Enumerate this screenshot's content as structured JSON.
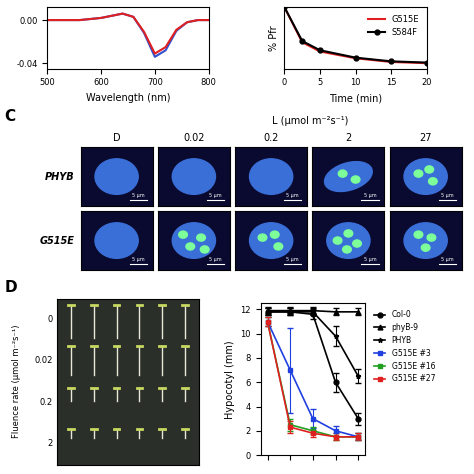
{
  "chart_data": [
    {
      "type": "line",
      "xlabel": "Wavelength (nm)",
      "x": [
        500,
        520,
        540,
        560,
        580,
        600,
        620,
        640,
        660,
        680,
        700,
        720,
        740,
        760,
        780,
        800
      ],
      "series": [
        {
          "color": "#3050d0",
          "marker": "none",
          "line_style": "solid",
          "values": [
            0,
            0,
            0,
            0,
            0.001,
            0.002,
            0.004,
            0.006,
            0.003,
            -0.012,
            -0.034,
            -0.028,
            -0.01,
            -0.002,
            0,
            0
          ]
        },
        {
          "color": "#e02020",
          "marker": "none",
          "line_style": "solid",
          "values": [
            0,
            0,
            0,
            0,
            0.001,
            0.002,
            0.004,
            0.006,
            0.003,
            -0.011,
            -0.031,
            -0.025,
            -0.009,
            -0.002,
            0,
            0
          ]
        }
      ],
      "xlim": [
        500,
        800
      ],
      "xticks": [
        500,
        600,
        700,
        800
      ],
      "ylim": [
        -0.045,
        0.012
      ],
      "yticks": [
        -0.04,
        {
          "value": 0,
          "label": "0.00"
        }
      ]
    },
    {
      "type": "line",
      "xlabel": "Time (min)",
      "ylabel": "% Pfr",
      "x": [
        0,
        2.5,
        5,
        10,
        15,
        20
      ],
      "series": [
        {
          "name": "G515E",
          "color": "#e02020",
          "marker": "none",
          "line_style": "solid",
          "values": [
            100,
            43,
            28,
            17,
            11,
            9
          ]
        },
        {
          "name": "S584F",
          "color": "#000000",
          "marker": "circle",
          "line_style": "solid",
          "values": [
            100,
            45,
            30,
            18,
            12,
            10
          ]
        }
      ],
      "xlim": [
        0,
        20
      ],
      "xticks": [
        0,
        5,
        10,
        15,
        20
      ],
      "ylim": [
        0,
        100
      ],
      "tick_labels": "x",
      "legend": "upper right"
    },
    {
      "type": "line",
      "ylabel": "Hypocotyl (mm)",
      "x": [
        0,
        1,
        2,
        3,
        4
      ],
      "series": [
        {
          "name": "Col-0",
          "color": "#000000",
          "marker": "circle",
          "line_style": "solid",
          "values": [
            11.8,
            11.8,
            11.6,
            6.0,
            3.0
          ],
          "errors": [
            0.3,
            0.3,
            0.4,
            0.8,
            0.5
          ]
        },
        {
          "name": "phyB-9",
          "color": "#000000",
          "marker": "triangle",
          "line_style": "solid",
          "values": [
            11.9,
            11.9,
            11.9,
            11.8,
            11.8
          ],
          "errors": [
            0.3,
            0.3,
            0.3,
            0.3,
            0.3
          ]
        },
        {
          "name": "PHYB",
          "color": "#000000",
          "marker": "star",
          "line_style": "solid",
          "values": [
            11.8,
            11.8,
            11.8,
            9.8,
            6.5
          ],
          "errors": [
            0.3,
            0.3,
            0.3,
            0.8,
            0.6
          ]
        },
        {
          "name": "G515E #3",
          "color": "#2040e0",
          "marker": "square",
          "line_style": "solid",
          "values": [
            11.0,
            7.0,
            3.0,
            2.0,
            1.5
          ],
          "errors": [
            0.4,
            3.5,
            0.8,
            0.4,
            0.3
          ]
        },
        {
          "name": "G515E #16",
          "color": "#20a020",
          "marker": "square",
          "line_style": "solid",
          "values": [
            11.0,
            2.5,
            2.0,
            1.5,
            1.5
          ],
          "errors": [
            0.4,
            0.5,
            0.3,
            0.3,
            0.3
          ]
        },
        {
          "name": "G515E #27",
          "color": "#e02020",
          "marker": "square",
          "line_style": "solid",
          "values": [
            11.0,
            2.3,
            1.8,
            1.5,
            1.5
          ],
          "errors": [
            0.4,
            0.5,
            0.3,
            0.3,
            0.3
          ]
        }
      ],
      "xlim": [
        -0.3,
        4.3
      ],
      "xticks": [
        0,
        1,
        2,
        3,
        4
      ],
      "ylim": [
        0,
        12.5
      ],
      "yticks": [
        0,
        2,
        4,
        6,
        8,
        10,
        12
      ],
      "tick_labels": "y",
      "legend": "upper left"
    }
  ],
  "panel_c": {
    "label": "C",
    "header": "L (µmol m⁻²s⁻¹)",
    "columns": [
      "D",
      "0.02",
      "0.2",
      "2",
      "27"
    ],
    "rows": [
      "PHYB",
      "G515E"
    ],
    "scale_bar": "5 μm"
  },
  "panel_d_photo": {
    "label": "D",
    "axis_label": "Fluence rate (µmol m⁻²s⁻¹)",
    "rows": [
      "0",
      "0.02",
      "0.2",
      "2"
    ]
  }
}
